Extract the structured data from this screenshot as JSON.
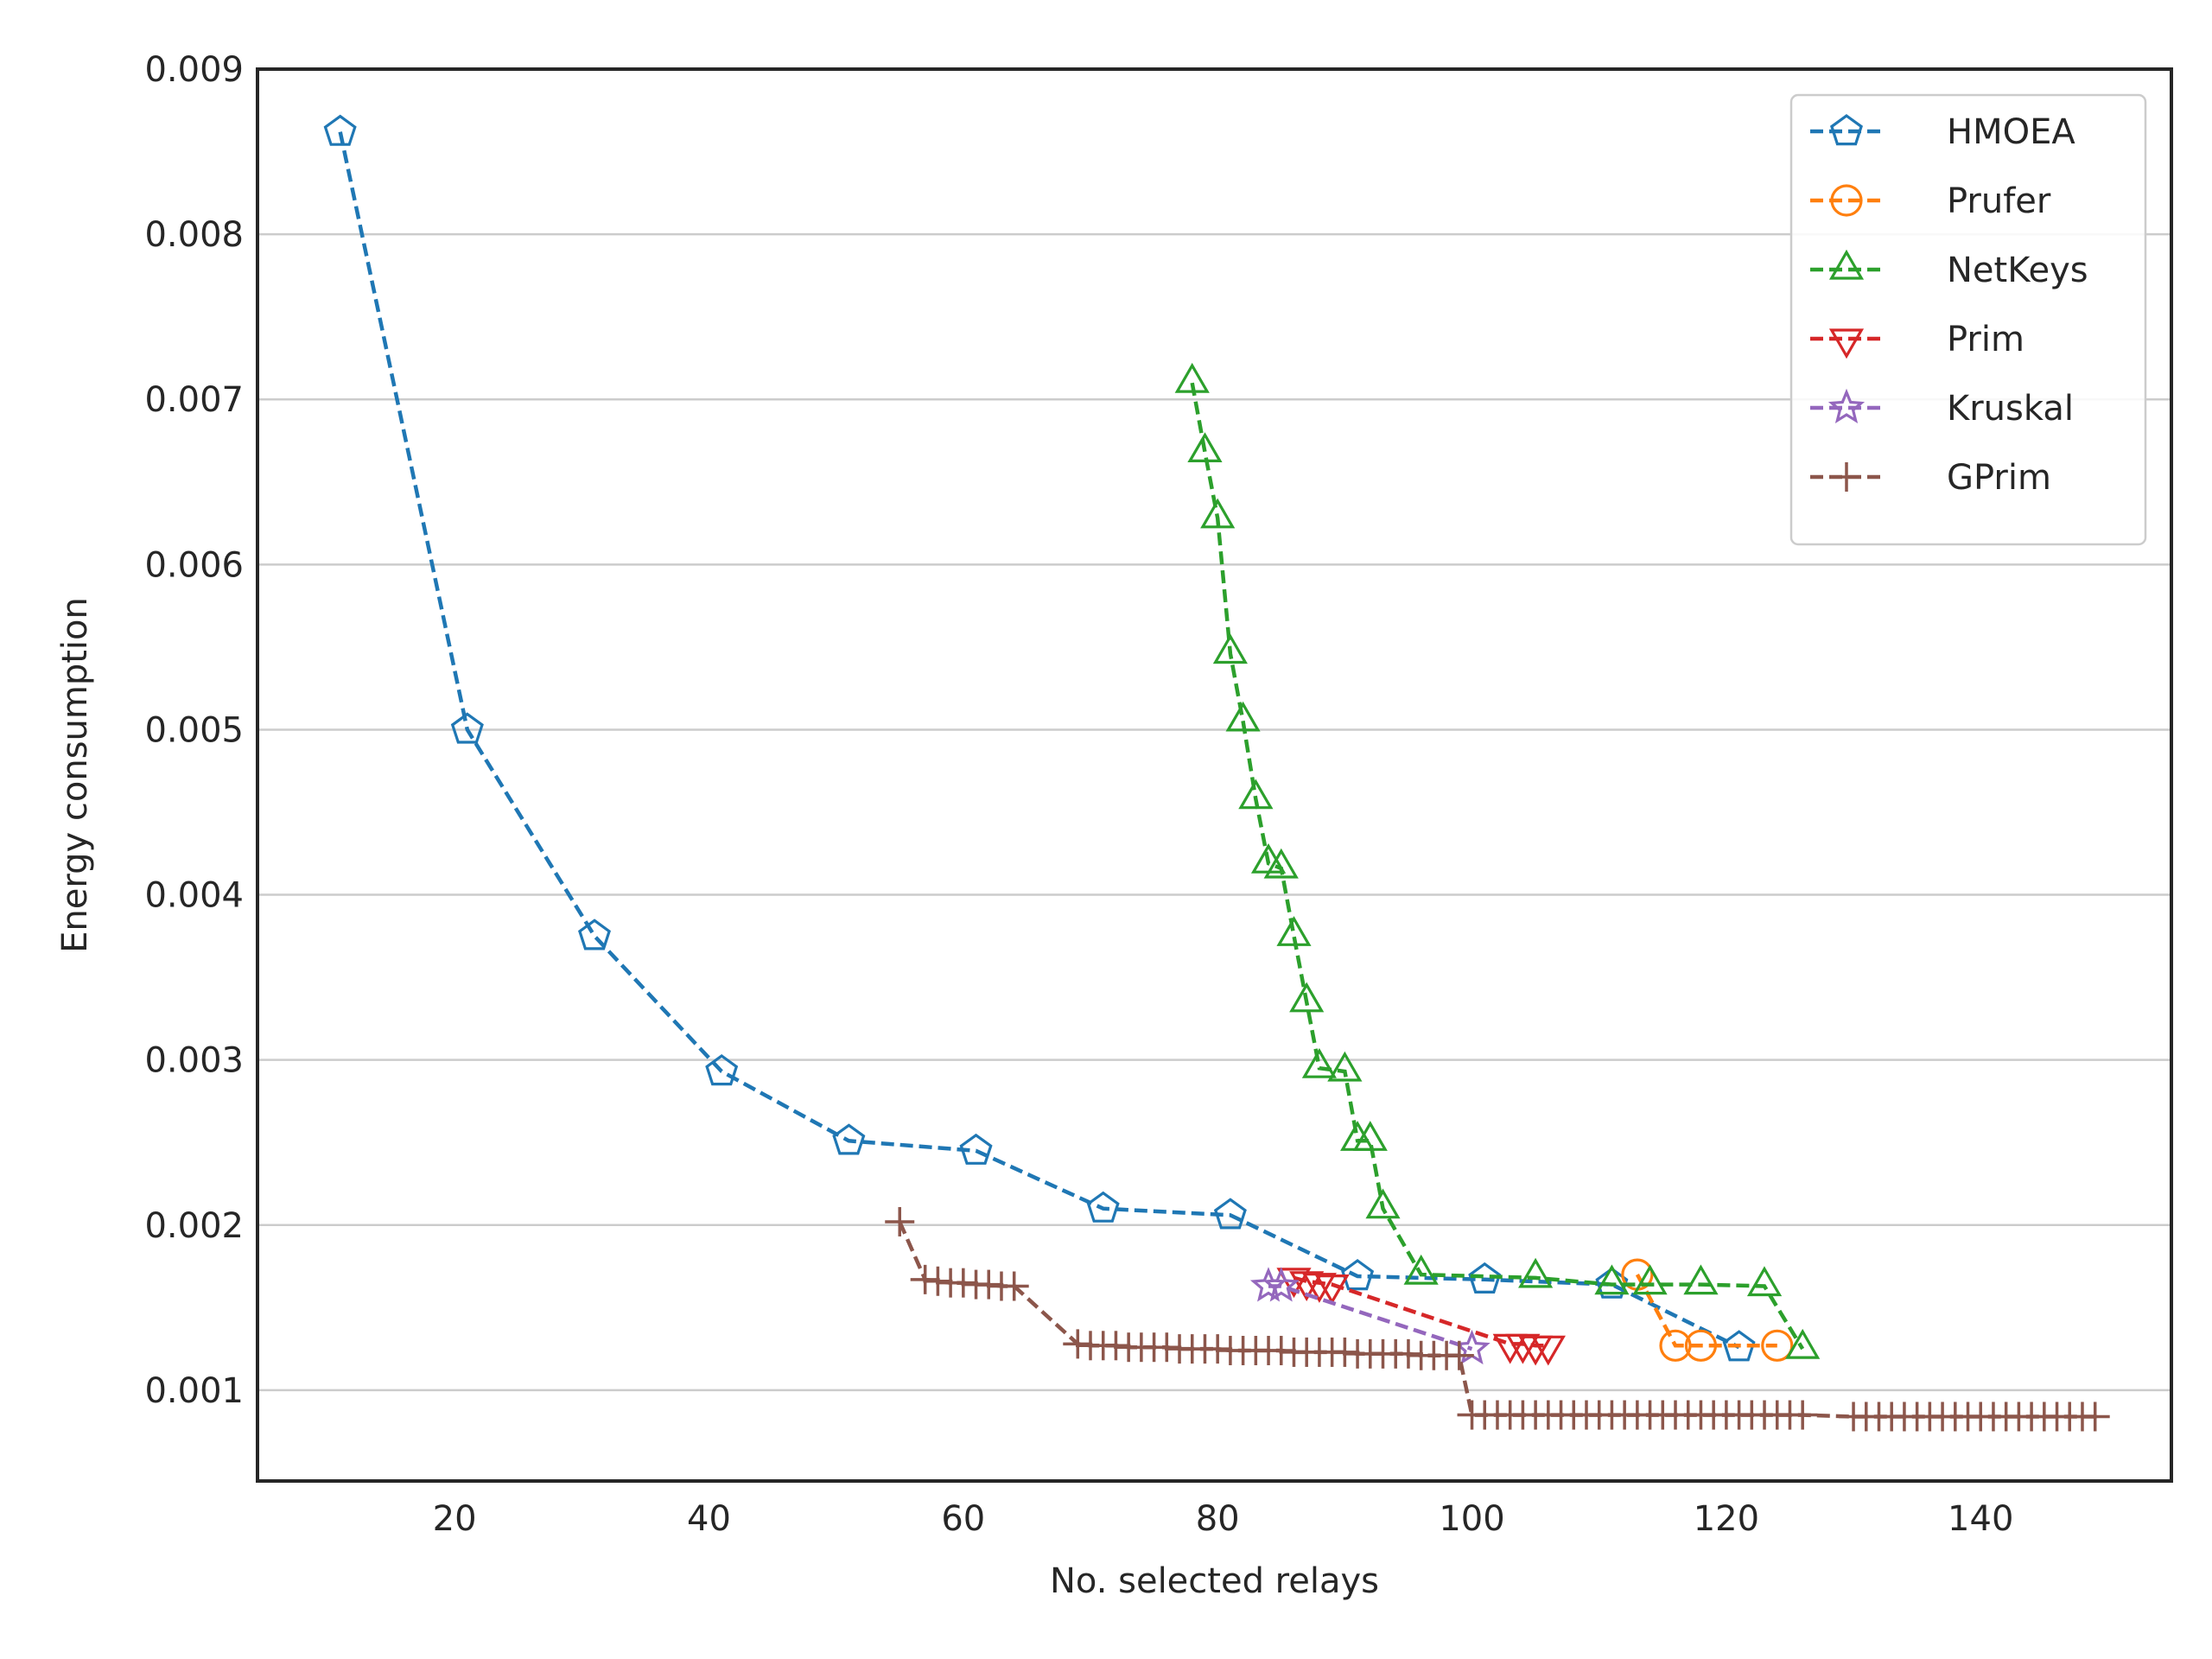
{
  "chart_data": {
    "type": "line",
    "title": "",
    "xlabel": "No. selected relays",
    "ylabel": "Energy consumption",
    "xlim": [
      4.5,
      155
    ],
    "ylim": [
      0.00045,
      0.009
    ],
    "xticks": [
      20,
      40,
      60,
      80,
      100,
      120,
      140
    ],
    "xtick_labels": [
      "20",
      "40",
      "60",
      "80",
      "100",
      "120",
      "140"
    ],
    "yticks": [
      0.001,
      0.002,
      0.003,
      0.004,
      0.005,
      0.006,
      0.007,
      0.008,
      0.009
    ],
    "ytick_labels": [
      "0.001",
      "0.002",
      "0.003",
      "0.004",
      "0.005",
      "0.006",
      "0.007",
      "0.008",
      "0.009"
    ],
    "grid": "horizontal",
    "legend_position": "top-right",
    "series": [
      {
        "name": "HMOEA",
        "color": "#1f77b4",
        "marker": "pentagon",
        "x": [
          11,
          21,
          31,
          41,
          51,
          61,
          71,
          81,
          91,
          101,
          111,
          121
        ],
        "y": [
          0.00862,
          0.005,
          0.00375,
          0.00293,
          0.00251,
          0.00245,
          0.0021,
          0.00206,
          0.00169,
          0.00167,
          0.00164,
          0.00126
        ]
      },
      {
        "name": "Prufer",
        "color": "#ff7f0e",
        "marker": "circle",
        "x": [
          113,
          116,
          118,
          124
        ],
        "y": [
          0.0017,
          0.00127,
          0.00127,
          0.00127
        ]
      },
      {
        "name": "NetKeys",
        "color": "#2ca02c",
        "marker": "triangle-up",
        "x": [
          78,
          79,
          80,
          81,
          82,
          83,
          84,
          85,
          86,
          87,
          88,
          90,
          91,
          92,
          93,
          96,
          105,
          111,
          114,
          118,
          123,
          126
        ],
        "y": [
          0.0071,
          0.00668,
          0.00628,
          0.00546,
          0.00505,
          0.00458,
          0.00419,
          0.00416,
          0.00375,
          0.00335,
          0.00295,
          0.00293,
          0.00251,
          0.00251,
          0.0021,
          0.0017,
          0.00168,
          0.00164,
          0.00164,
          0.00164,
          0.00163,
          0.00125
        ]
      },
      {
        "name": "Prim",
        "color": "#d62728",
        "marker": "triangle-down",
        "x": [
          86,
          87,
          88,
          89,
          103,
          104,
          105,
          106
        ],
        "y": [
          0.00168,
          0.00166,
          0.00165,
          0.00164,
          0.00128,
          0.00128,
          0.00127,
          0.00127
        ]
      },
      {
        "name": "Kruskal",
        "color": "#9467bd",
        "marker": "star",
        "x": [
          84,
          85,
          100
        ],
        "y": [
          0.00163,
          0.00163,
          0.00125
        ]
      },
      {
        "name": "GPrim",
        "color": "#8c564b",
        "marker": "plus",
        "x": [
          55,
          57,
          58,
          59,
          60,
          61,
          62,
          63,
          64,
          69,
          70,
          71,
          72,
          73,
          74,
          75,
          76,
          77,
          78,
          79,
          80,
          81,
          82,
          83,
          84,
          85,
          86,
          87,
          88,
          89,
          90,
          91,
          92,
          93,
          94,
          95,
          96,
          97,
          98,
          99,
          100,
          101,
          102,
          103,
          104,
          105,
          106,
          107,
          108,
          109,
          110,
          111,
          112,
          113,
          114,
          115,
          116,
          117,
          118,
          119,
          120,
          121,
          122,
          123,
          124,
          125,
          126,
          130,
          131,
          132,
          133,
          134,
          135,
          136,
          137,
          138,
          139,
          140,
          141,
          142,
          143,
          144,
          145,
          146,
          147,
          148,
          149
        ],
        "y": [
          0.00202,
          0.00167,
          0.00166,
          0.00165,
          0.00165,
          0.00164,
          0.00164,
          0.00163,
          0.00163,
          0.00128,
          0.00127,
          0.00127,
          0.00127,
          0.00126,
          0.00126,
          0.00126,
          0.00126,
          0.00125,
          0.00125,
          0.00125,
          0.00125,
          0.00124,
          0.00124,
          0.00124,
          0.00124,
          0.00124,
          0.00123,
          0.00123,
          0.00123,
          0.00123,
          0.00123,
          0.00122,
          0.00122,
          0.00122,
          0.00122,
          0.00122,
          0.00121,
          0.00121,
          0.00121,
          0.00121,
          0.00085,
          0.00085,
          0.00085,
          0.00085,
          0.00085,
          0.00085,
          0.00085,
          0.00085,
          0.00085,
          0.00085,
          0.00085,
          0.00085,
          0.00085,
          0.00085,
          0.00085,
          0.00085,
          0.00085,
          0.00085,
          0.00085,
          0.00085,
          0.00085,
          0.00085,
          0.00085,
          0.00085,
          0.00085,
          0.00085,
          0.00085,
          0.00084,
          0.00084,
          0.00084,
          0.00084,
          0.00084,
          0.00084,
          0.00084,
          0.00084,
          0.00084,
          0.00084,
          0.00084,
          0.00084,
          0.00084,
          0.00084,
          0.00084,
          0.00084,
          0.00084,
          0.00084,
          0.00084,
          0.00084
        ]
      }
    ]
  }
}
